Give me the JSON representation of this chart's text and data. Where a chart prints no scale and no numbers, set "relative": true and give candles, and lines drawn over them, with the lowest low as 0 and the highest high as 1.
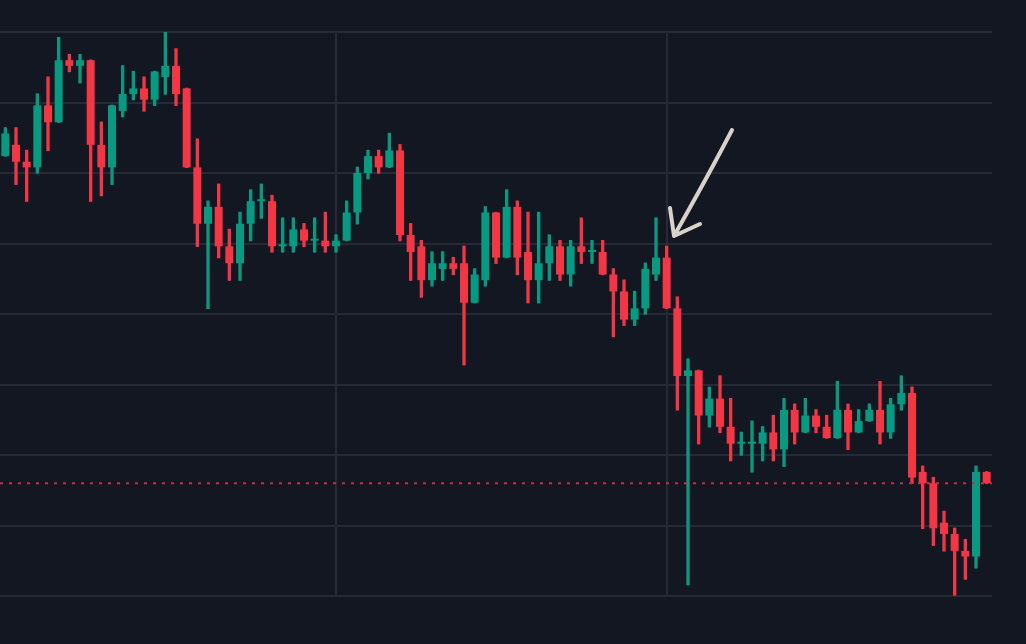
{
  "chart_data": {
    "type": "candlestick",
    "relative": true,
    "grid": true,
    "categories": [
      null,
      null,
      null,
      null,
      null,
      null,
      null,
      null,
      null,
      null,
      null,
      null,
      null,
      null,
      null,
      null,
      null,
      null,
      null,
      null,
      null,
      null,
      null,
      null,
      null,
      null,
      null,
      null,
      null,
      null,
      null,
      null,
      null,
      null,
      null,
      null,
      null,
      null,
      null,
      null,
      null,
      null,
      null,
      null,
      null,
      null,
      null,
      null,
      null,
      null,
      null,
      null,
      null,
      null,
      null,
      null,
      null,
      null,
      null,
      null,
      null,
      null,
      null,
      null,
      null,
      null,
      null,
      null,
      null,
      null,
      null,
      null,
      null,
      null,
      null,
      null,
      null,
      null,
      null,
      null,
      null,
      null,
      null,
      null,
      null,
      null,
      null,
      null,
      null,
      null,
      null,
      null,
      null
    ],
    "ohlc": [
      [
        0.78,
        0.83,
        0.78,
        0.82
      ],
      [
        0.8,
        0.83,
        0.73,
        0.77
      ],
      [
        0.77,
        0.79,
        0.7,
        0.76
      ],
      [
        0.76,
        0.89,
        0.75,
        0.87
      ],
      [
        0.87,
        0.92,
        0.79,
        0.84
      ],
      [
        0.84,
        0.99,
        0.84,
        0.95
      ],
      [
        0.95,
        0.96,
        0.93,
        0.94
      ],
      [
        0.94,
        0.96,
        0.91,
        0.95
      ],
      [
        0.95,
        0.95,
        0.7,
        0.8
      ],
      [
        0.8,
        0.84,
        0.71,
        0.76
      ],
      [
        0.76,
        0.87,
        0.73,
        0.87
      ],
      [
        0.86,
        0.94,
        0.85,
        0.89
      ],
      [
        0.89,
        0.93,
        0.88,
        0.9
      ],
      [
        0.9,
        0.92,
        0.86,
        0.88
      ],
      [
        0.88,
        0.93,
        0.87,
        0.93
      ],
      [
        0.92,
        1.0,
        0.89,
        0.94
      ],
      [
        0.94,
        0.97,
        0.87,
        0.89
      ],
      [
        0.9,
        0.9,
        0.76,
        0.76
      ],
      [
        0.76,
        0.81,
        0.62,
        0.66
      ],
      [
        0.66,
        0.7,
        0.51,
        0.69
      ],
      [
        0.69,
        0.73,
        0.6,
        0.62
      ],
      [
        0.62,
        0.65,
        0.56,
        0.59
      ],
      [
        0.59,
        0.68,
        0.56,
        0.66
      ],
      [
        0.66,
        0.72,
        0.63,
        0.7
      ],
      [
        0.7,
        0.73,
        0.67,
        0.7
      ],
      [
        0.7,
        0.71,
        0.61,
        0.62
      ],
      [
        0.62,
        0.67,
        0.61,
        0.62
      ],
      [
        0.62,
        0.67,
        0.61,
        0.65
      ],
      [
        0.65,
        0.66,
        0.62,
        0.63
      ],
      [
        0.63,
        0.67,
        0.61,
        0.63
      ],
      [
        0.63,
        0.68,
        0.61,
        0.62
      ],
      [
        0.62,
        0.64,
        0.61,
        0.63
      ],
      [
        0.63,
        0.7,
        0.63,
        0.68
      ],
      [
        0.68,
        0.76,
        0.66,
        0.75
      ],
      [
        0.75,
        0.79,
        0.74,
        0.78
      ],
      [
        0.78,
        0.79,
        0.75,
        0.76
      ],
      [
        0.76,
        0.82,
        0.76,
        0.79
      ],
      [
        0.79,
        0.8,
        0.63,
        0.64
      ],
      [
        0.64,
        0.66,
        0.56,
        0.61
      ],
      [
        0.62,
        0.63,
        0.53,
        0.56
      ],
      [
        0.56,
        0.61,
        0.55,
        0.59
      ],
      [
        0.58,
        0.61,
        0.56,
        0.59
      ],
      [
        0.59,
        0.6,
        0.57,
        0.58
      ],
      [
        0.59,
        0.62,
        0.41,
        0.52
      ],
      [
        0.52,
        0.58,
        0.52,
        0.57
      ],
      [
        0.56,
        0.69,
        0.55,
        0.68
      ],
      [
        0.68,
        0.68,
        0.59,
        0.6
      ],
      [
        0.6,
        0.72,
        0.6,
        0.69
      ],
      [
        0.69,
        0.7,
        0.57,
        0.6
      ],
      [
        0.61,
        0.68,
        0.52,
        0.56
      ],
      [
        0.56,
        0.68,
        0.52,
        0.59
      ],
      [
        0.59,
        0.64,
        0.56,
        0.62
      ],
      [
        0.62,
        0.63,
        0.56,
        0.57
      ],
      [
        0.57,
        0.63,
        0.55,
        0.62
      ],
      [
        0.62,
        0.67,
        0.59,
        0.61
      ],
      [
        0.61,
        0.63,
        0.59,
        0.61
      ],
      [
        0.61,
        0.63,
        0.57,
        0.57
      ],
      [
        0.57,
        0.58,
        0.46,
        0.54
      ],
      [
        0.54,
        0.56,
        0.48,
        0.49
      ],
      [
        0.49,
        0.54,
        0.48,
        0.51
      ],
      [
        0.51,
        0.59,
        0.5,
        0.58
      ],
      [
        0.57,
        0.67,
        0.56,
        0.6
      ],
      [
        0.6,
        0.62,
        0.51,
        0.51
      ],
      [
        0.51,
        0.53,
        0.33,
        0.39
      ],
      [
        0.39,
        0.42,
        0.02,
        0.4
      ],
      [
        0.4,
        0.4,
        0.27,
        0.32
      ],
      [
        0.32,
        0.37,
        0.3,
        0.35
      ],
      [
        0.35,
        0.39,
        0.29,
        0.3
      ],
      [
        0.3,
        0.35,
        0.24,
        0.27
      ],
      [
        0.27,
        0.29,
        0.25,
        0.27
      ],
      [
        0.27,
        0.31,
        0.22,
        0.27
      ],
      [
        0.27,
        0.3,
        0.24,
        0.29
      ],
      [
        0.29,
        0.32,
        0.24,
        0.26
      ],
      [
        0.26,
        0.35,
        0.23,
        0.33
      ],
      [
        0.33,
        0.34,
        0.27,
        0.29
      ],
      [
        0.29,
        0.35,
        0.29,
        0.32
      ],
      [
        0.32,
        0.33,
        0.29,
        0.3
      ],
      [
        0.3,
        0.32,
        0.28,
        0.28
      ],
      [
        0.28,
        0.38,
        0.28,
        0.33
      ],
      [
        0.33,
        0.34,
        0.26,
        0.29
      ],
      [
        0.29,
        0.33,
        0.29,
        0.31
      ],
      [
        0.31,
        0.34,
        0.31,
        0.33
      ],
      [
        0.33,
        0.38,
        0.27,
        0.29
      ],
      [
        0.29,
        0.35,
        0.28,
        0.34
      ],
      [
        0.34,
        0.39,
        0.33,
        0.36
      ],
      [
        0.36,
        0.37,
        0.2,
        0.21
      ],
      [
        0.22,
        0.23,
        0.12,
        0.2
      ],
      [
        0.2,
        0.21,
        0.09,
        0.12
      ],
      [
        0.13,
        0.15,
        0.08,
        0.11
      ],
      [
        0.11,
        0.12,
        0,
        0.08
      ],
      [
        0.08,
        0.1,
        0.03,
        0.07
      ],
      [
        0.07,
        0.23,
        0.05,
        0.22
      ],
      [
        0.22,
        0.22,
        0.2,
        0.2
      ]
    ],
    "ref_lines": [
      {
        "axis": "y",
        "value": 0.2,
        "color": "#c2313c",
        "line_style": "dotted"
      }
    ]
  }
}
